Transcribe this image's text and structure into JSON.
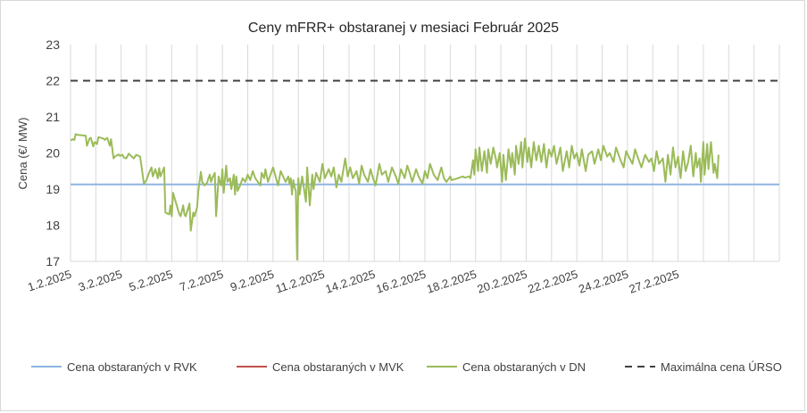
{
  "chart_data": {
    "type": "line",
    "title": "Ceny mFRR+ obstaranej v mesiaci Február 2025",
    "xlabel": "",
    "ylabel": "Cena (€/ MW)",
    "ylim": [
      17,
      23
    ],
    "yticks": [
      "17",
      "18",
      "19",
      "20",
      "21",
      "22",
      "23"
    ],
    "xlim": [
      1,
      29
    ],
    "xticks": [
      {
        "label": "1.2.2025",
        "day": 1
      },
      {
        "label": "3.2.2025",
        "day": 3
      },
      {
        "label": "5.2.2025",
        "day": 5
      },
      {
        "label": "7.2.2025",
        "day": 7
      },
      {
        "label": "9.2.2025",
        "day": 9
      },
      {
        "label": "11.2.2025",
        "day": 11
      },
      {
        "label": "14.2.2025",
        "day": 13
      },
      {
        "label": "16.2.2025",
        "day": 15
      },
      {
        "label": "18.2.2025",
        "day": 17
      },
      {
        "label": "20.2.2025",
        "day": 19
      },
      {
        "label": "22.2.2025",
        "day": 21
      },
      {
        "label": "24.2.2025",
        "day": 23
      },
      {
        "label": "27.2.2025",
        "day": 25
      }
    ],
    "grid": "vertical",
    "legend_position": "bottom",
    "series": [
      {
        "name": "Cena obstaraných v RVK",
        "color": "#8eb4e3",
        "style": "solid",
        "constant": 19.13
      },
      {
        "name": "Cena obstaraných v MVK",
        "color": "#c0504d",
        "style": "solid",
        "values": []
      },
      {
        "name": "Cena obstaraných v DN",
        "color": "#9bbb59",
        "style": "solid",
        "x": [
          1.0,
          1.1,
          1.15,
          1.2,
          1.3,
          1.6,
          1.65,
          1.75,
          1.8,
          1.9,
          1.95,
          2.05,
          2.1,
          2.3,
          2.35,
          2.45,
          2.55,
          2.6,
          2.7,
          2.75,
          2.9,
          2.95,
          3.05,
          3.1,
          3.2,
          3.3,
          3.5,
          3.6,
          3.75,
          3.9,
          4.0,
          4.1,
          4.2,
          4.25,
          4.35,
          4.45,
          4.5,
          4.55,
          4.7,
          4.75,
          4.9,
          4.95,
          5.0,
          5.05,
          5.3,
          5.35,
          5.45,
          5.5,
          5.55,
          5.7,
          5.75,
          5.85,
          5.9,
          6.0,
          6.05,
          6.15,
          6.2,
          6.3,
          6.4,
          6.45,
          6.5,
          6.55,
          6.6,
          6.7,
          6.75,
          6.85,
          6.9,
          6.95,
          7.0,
          7.05,
          7.15,
          7.2,
          7.3,
          7.35,
          7.45,
          7.5,
          7.55,
          7.6,
          7.7,
          7.8,
          7.9,
          8.0,
          8.1,
          8.2,
          8.3,
          8.5,
          8.55,
          8.65,
          8.7,
          8.8,
          8.9,
          9.0,
          9.1,
          9.2,
          9.3,
          9.5,
          9.6,
          9.65,
          9.7,
          9.75,
          9.8,
          9.85,
          9.9,
          9.95,
          10.0,
          10.05,
          10.15,
          10.3,
          10.35,
          10.45,
          10.55,
          10.6,
          10.7,
          10.85,
          10.95,
          11.05,
          11.2,
          11.3,
          11.4,
          11.5,
          11.6,
          11.7,
          11.85,
          11.95,
          12.05,
          12.15,
          12.3,
          12.4,
          12.5,
          12.6,
          12.75,
          12.85,
          12.95,
          13.05,
          13.2,
          13.3,
          13.45,
          13.55,
          13.7,
          13.85,
          13.95,
          14.05,
          14.2,
          14.3,
          14.4,
          14.5,
          14.65,
          14.75,
          14.9,
          15.0,
          15.1,
          15.2,
          15.35,
          15.5,
          15.65,
          15.75,
          15.85,
          16.0,
          16.05,
          16.3,
          16.5,
          16.55,
          16.65,
          16.75,
          16.8,
          16.9,
          16.95,
          17.0,
          17.1,
          17.15,
          17.25,
          17.35,
          17.45,
          17.5,
          17.6,
          17.7,
          17.8,
          17.85,
          17.95,
          18.05,
          18.1,
          18.2,
          18.3,
          18.4,
          18.45,
          18.55,
          18.6,
          18.7,
          18.8,
          18.85,
          18.95,
          19.05,
          19.1,
          19.2,
          19.3,
          19.4,
          19.5,
          19.6,
          19.7,
          19.8,
          19.9,
          20.0,
          20.1,
          20.2,
          20.35,
          20.45,
          20.6,
          20.7,
          20.8,
          20.9,
          21.0,
          21.1,
          21.2,
          21.35,
          21.45,
          21.6,
          21.7,
          21.85,
          21.95,
          22.05,
          22.2,
          22.3,
          22.45,
          22.55,
          22.7,
          22.85,
          22.95,
          23.05,
          23.2,
          23.3,
          23.45,
          23.55,
          23.7,
          23.85,
          23.95,
          24.05,
          24.15,
          24.25,
          24.4,
          24.5,
          24.6,
          24.7,
          24.8,
          24.9,
          25.0,
          25.1,
          25.2,
          25.3,
          25.4,
          25.5,
          25.6,
          25.7,
          25.75,
          25.85,
          25.9,
          26.0,
          26.05,
          26.15,
          26.2,
          26.3,
          26.4,
          26.45,
          26.55,
          26.6
        ],
        "values": [
          20.35,
          20.38,
          20.36,
          20.52,
          20.5,
          20.48,
          20.2,
          20.4,
          20.42,
          20.18,
          20.3,
          20.25,
          20.44,
          20.4,
          20.36,
          20.42,
          20.2,
          20.38,
          19.85,
          19.9,
          19.96,
          19.92,
          19.95,
          19.88,
          19.85,
          19.98,
          19.85,
          19.95,
          19.9,
          19.15,
          19.25,
          19.45,
          19.6,
          19.35,
          19.55,
          19.3,
          19.58,
          19.35,
          19.6,
          18.35,
          18.3,
          18.55,
          18.25,
          18.9,
          18.3,
          18.25,
          18.55,
          18.3,
          18.25,
          18.6,
          17.85,
          18.35,
          18.25,
          18.5,
          18.95,
          19.48,
          19.2,
          19.1,
          19.18,
          19.3,
          19.4,
          19.2,
          19.3,
          19.45,
          18.25,
          19.35,
          19.2,
          19.1,
          19.55,
          18.9,
          19.65,
          19.2,
          19.3,
          19.0,
          19.4,
          18.85,
          19.35,
          18.95,
          19.1,
          19.3,
          19.2,
          19.4,
          19.25,
          19.5,
          19.3,
          19.1,
          19.45,
          19.3,
          19.55,
          19.2,
          19.4,
          19.6,
          19.35,
          19.1,
          19.5,
          19.2,
          19.35,
          19.15,
          19.3,
          18.85,
          19.25,
          19.05,
          18.95,
          17.05,
          19.3,
          18.85,
          19.35,
          18.65,
          19.6,
          18.55,
          19.4,
          19.0,
          19.45,
          19.2,
          19.7,
          19.3,
          19.55,
          19.35,
          19.6,
          19.05,
          19.4,
          19.2,
          19.85,
          19.35,
          19.6,
          19.3,
          19.5,
          19.15,
          19.65,
          19.4,
          19.2,
          19.55,
          19.3,
          19.1,
          19.7,
          19.4,
          19.5,
          19.2,
          19.6,
          19.35,
          19.15,
          19.55,
          19.3,
          19.65,
          19.45,
          19.2,
          19.55,
          19.35,
          19.15,
          19.5,
          19.3,
          19.7,
          19.4,
          19.25,
          19.6,
          19.3,
          19.2,
          19.35,
          19.25,
          19.3,
          19.35,
          19.32,
          19.33,
          19.35,
          19.3,
          19.8,
          19.4,
          20.1,
          19.5,
          20.15,
          19.5,
          20.05,
          19.45,
          20.1,
          19.7,
          20.15,
          19.85,
          19.6,
          20.0,
          19.2,
          19.95,
          19.25,
          20.1,
          19.6,
          20.0,
          19.4,
          20.2,
          19.7,
          20.3,
          19.6,
          20.4,
          19.75,
          20.15,
          19.6,
          20.3,
          19.8,
          20.2,
          19.75,
          20.25,
          19.6,
          20.1,
          19.9,
          20.2,
          19.7,
          20.15,
          19.5,
          20.05,
          19.6,
          20.2,
          19.85,
          20.0,
          19.65,
          20.1,
          19.5,
          19.95,
          20.05,
          19.7,
          20.1,
          19.8,
          20.2,
          19.9,
          20.0,
          19.75,
          20.15,
          19.85,
          19.6,
          20.05,
          19.9,
          19.7,
          20.1,
          19.8,
          19.6,
          19.95,
          19.75,
          19.85,
          19.5,
          20.05,
          19.7,
          19.85,
          19.2,
          19.95,
          19.4,
          20.15,
          19.6,
          19.9,
          19.3,
          20.05,
          19.5,
          19.75,
          20.2,
          19.35,
          20.0,
          19.6,
          19.85,
          19.2,
          20.3,
          19.4,
          20.25,
          19.55,
          20.3,
          19.45,
          19.7,
          19.3,
          19.95
        ]
      },
      {
        "name": "Maximálna cena ÚRSO",
        "color": "#404040",
        "style": "dashed",
        "constant": 22
      }
    ]
  }
}
